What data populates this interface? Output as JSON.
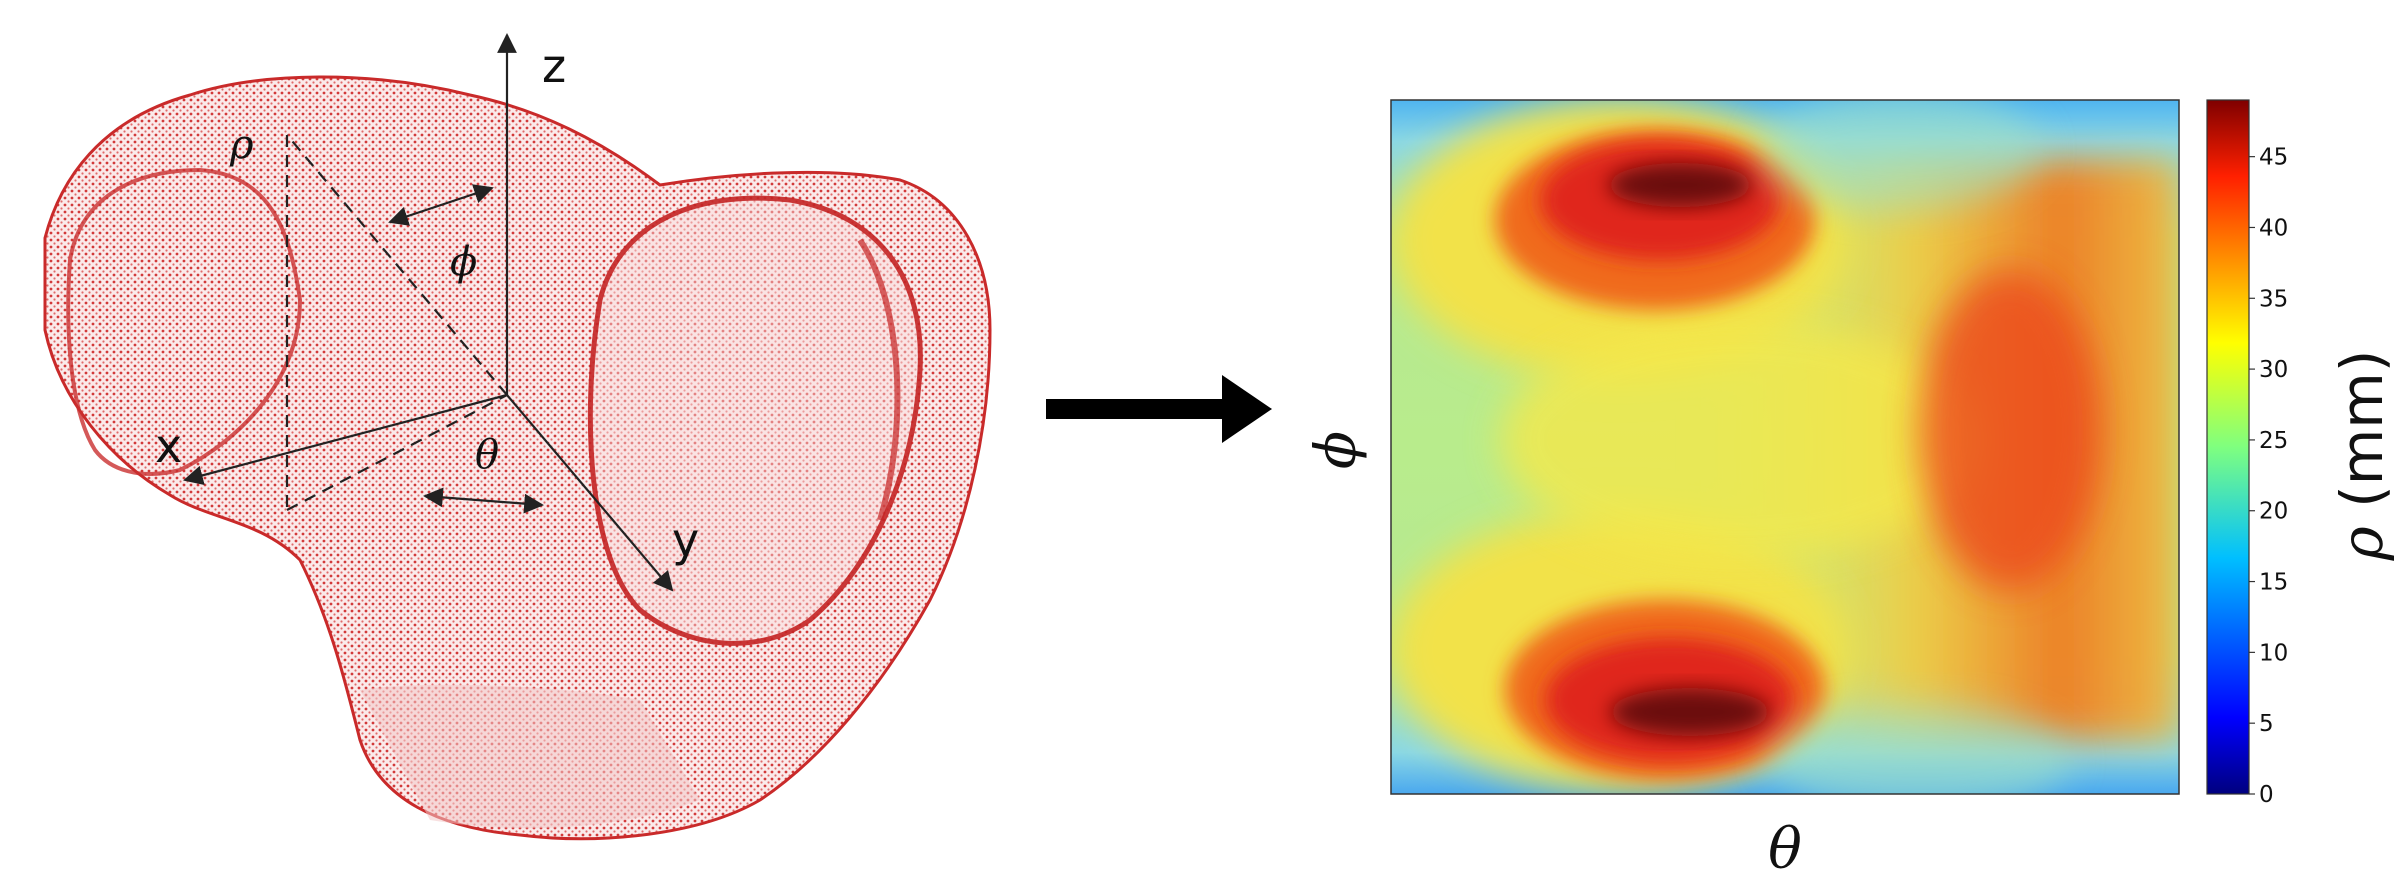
{
  "left_panel": {
    "axis_labels": {
      "x": "x",
      "y": "y",
      "z": "z"
    },
    "coord_labels": {
      "rho": "ρ",
      "phi": "ϕ",
      "theta": "θ"
    },
    "colors": {
      "bone": "#d22a2a",
      "bone_fill": "#f4c9c9",
      "axes": "#222222"
    }
  },
  "arrow": {
    "icon": "right-arrow-icon",
    "color": "#000000"
  },
  "right_panel": {
    "xlabel": "θ",
    "ylabel": "ϕ",
    "colorbar": {
      "label_symbol": "ρ",
      "label_unit": " (mm)",
      "ticks": [
        "0",
        "5",
        "10",
        "15",
        "20",
        "25",
        "30",
        "35",
        "40",
        "45"
      ],
      "range": [
        0,
        49
      ],
      "colormap": "jet"
    }
  },
  "chart_data": {
    "type": "heatmap",
    "title": "",
    "xlabel": "θ",
    "ylabel": "ϕ",
    "colorbar_label": "ρ (mm)",
    "value_range": [
      0,
      49
    ],
    "colorbar_ticks": [
      0,
      5,
      10,
      15,
      20,
      25,
      30,
      35,
      40,
      45
    ],
    "features": [
      {
        "region": "upper-left-center",
        "value": 47
      },
      {
        "region": "lower-left-center",
        "value": 48
      },
      {
        "region": "right-middle",
        "value": 40
      },
      {
        "region": "top-and-bottom-edges",
        "value": 15
      },
      {
        "region": "left-middle",
        "value": 24
      }
    ]
  }
}
